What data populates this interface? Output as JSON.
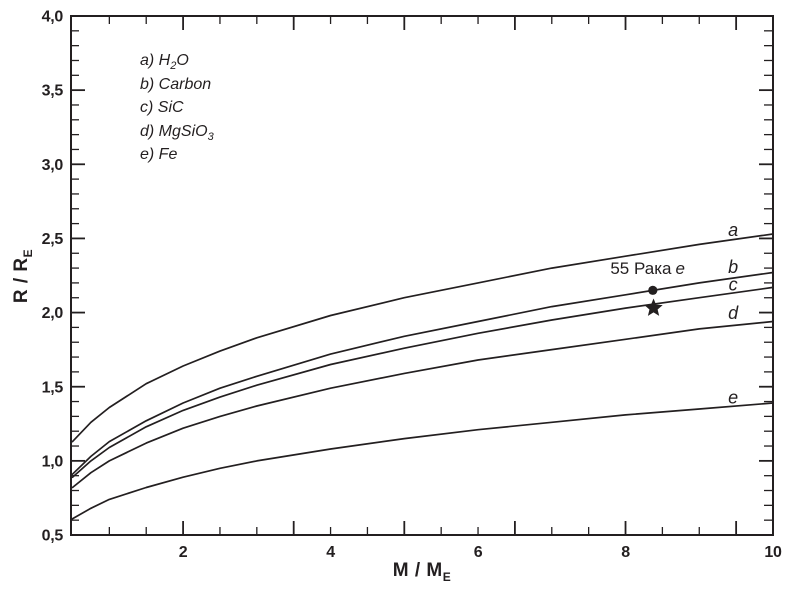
{
  "colors": {
    "ink": "#231f20",
    "background": "#ffffff"
  },
  "chart_data": {
    "type": "line",
    "title": "",
    "xlabel": "M / M_E",
    "ylabel": "R / R_E",
    "xlabel_main": "M / M",
    "xlabel_sub": "E",
    "ylabel_main": "R / R",
    "ylabel_sub": "E",
    "xlim": [
      0.48,
      10
    ],
    "ylim": [
      0.5,
      4.0
    ],
    "grid": false,
    "x_major_ticks": [
      {
        "value": 2,
        "label": "2"
      },
      {
        "value": 4,
        "label": "4"
      },
      {
        "value": 6,
        "label": "6"
      },
      {
        "value": 8,
        "label": "8"
      },
      {
        "value": 10,
        "label": "10"
      }
    ],
    "x_minor_step": 0.5,
    "x_tall_ticks": [
      2,
      3.5,
      5,
      6.5,
      8,
      9.5
    ],
    "y_major_ticks": [
      {
        "value": 0.5,
        "label": "0,5"
      },
      {
        "value": 1.0,
        "label": "1,0"
      },
      {
        "value": 1.5,
        "label": "1,5"
      },
      {
        "value": 2.0,
        "label": "2,0"
      },
      {
        "value": 2.5,
        "label": "2,5"
      },
      {
        "value": 3.0,
        "label": "3,0"
      },
      {
        "value": 3.5,
        "label": "3,5"
      },
      {
        "value": 4.0,
        "label": "4,0"
      }
    ],
    "y_minor_step": 0.1,
    "x": [
      0.5,
      0.75,
      1,
      1.5,
      2,
      2.5,
      3,
      4,
      5,
      6,
      7,
      8,
      9,
      10
    ],
    "series": [
      {
        "key": "a",
        "name": "H₂O",
        "values": [
          1.13,
          1.26,
          1.36,
          1.52,
          1.64,
          1.74,
          1.83,
          1.98,
          2.1,
          2.2,
          2.3,
          2.38,
          2.46,
          2.53
        ],
        "letter_pos": {
          "m": 9.46,
          "r": 2.56
        }
      },
      {
        "key": "b",
        "name": "Carbon",
        "values": [
          0.91,
          1.03,
          1.13,
          1.27,
          1.39,
          1.49,
          1.57,
          1.72,
          1.84,
          1.94,
          2.04,
          2.12,
          2.2,
          2.27
        ],
        "letter_pos": {
          "m": 9.46,
          "r": 2.31
        }
      },
      {
        "key": "c",
        "name": "SiC",
        "values": [
          0.89,
          1.0,
          1.09,
          1.23,
          1.34,
          1.43,
          1.51,
          1.65,
          1.76,
          1.86,
          1.95,
          2.03,
          2.1,
          2.17
        ],
        "letter_pos": {
          "m": 9.46,
          "r": 2.19
        }
      },
      {
        "key": "d",
        "name": "MgSiO₃",
        "values": [
          0.82,
          0.92,
          1.0,
          1.12,
          1.22,
          1.3,
          1.37,
          1.49,
          1.59,
          1.68,
          1.75,
          1.82,
          1.89,
          1.94
        ],
        "letter_pos": {
          "m": 9.46,
          "r": 2.0
        }
      },
      {
        "key": "e",
        "name": "Fe",
        "values": [
          0.61,
          0.68,
          0.74,
          0.82,
          0.89,
          0.95,
          1.0,
          1.08,
          1.15,
          1.21,
          1.26,
          1.31,
          1.35,
          1.39
        ],
        "letter_pos": {
          "m": 9.46,
          "r": 1.43
        }
      }
    ],
    "annotations": [
      {
        "kind": "label",
        "text": "55 Рака",
        "italic_suffix": "e",
        "m": 8.3,
        "r": 2.3
      },
      {
        "kind": "dot",
        "m": 8.37,
        "r": 2.15
      },
      {
        "kind": "star",
        "m": 8.38,
        "r": 2.03
      }
    ],
    "legend": {
      "position": "upper-left",
      "items": [
        {
          "pre": "a) H",
          "sub": "2",
          "post": "O"
        },
        {
          "pre": "b) Carbon",
          "sub": "",
          "post": ""
        },
        {
          "pre": "c) SiC",
          "sub": "",
          "post": ""
        },
        {
          "pre": "d) MgSiO",
          "sub": "3",
          "post": ""
        },
        {
          "pre": "e) Fe",
          "sub": "",
          "post": ""
        }
      ]
    }
  }
}
